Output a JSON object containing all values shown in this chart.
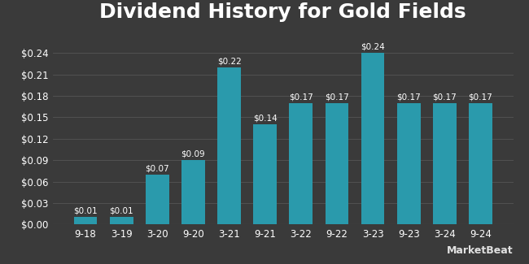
{
  "title": "Dividend History for Gold Fields",
  "categories": [
    "9-18",
    "3-19",
    "3-20",
    "9-20",
    "3-21",
    "9-21",
    "3-22",
    "9-22",
    "3-23",
    "9-23",
    "3-24",
    "9-24"
  ],
  "values": [
    0.01,
    0.01,
    0.07,
    0.09,
    0.22,
    0.14,
    0.17,
    0.17,
    0.24,
    0.17,
    0.17,
    0.17
  ],
  "bar_color": "#2a9aac",
  "background_color": "#3a3a3a",
  "text_color": "#ffffff",
  "grid_color": "#555555",
  "yticks": [
    0.0,
    0.03,
    0.06,
    0.09,
    0.12,
    0.15,
    0.18,
    0.21,
    0.24
  ],
  "ylim": [
    0,
    0.27
  ],
  "title_fontsize": 18,
  "tick_fontsize": 8.5,
  "bar_label_fontsize": 7.5,
  "watermark_text": "MarketBeat",
  "bar_width": 0.65
}
